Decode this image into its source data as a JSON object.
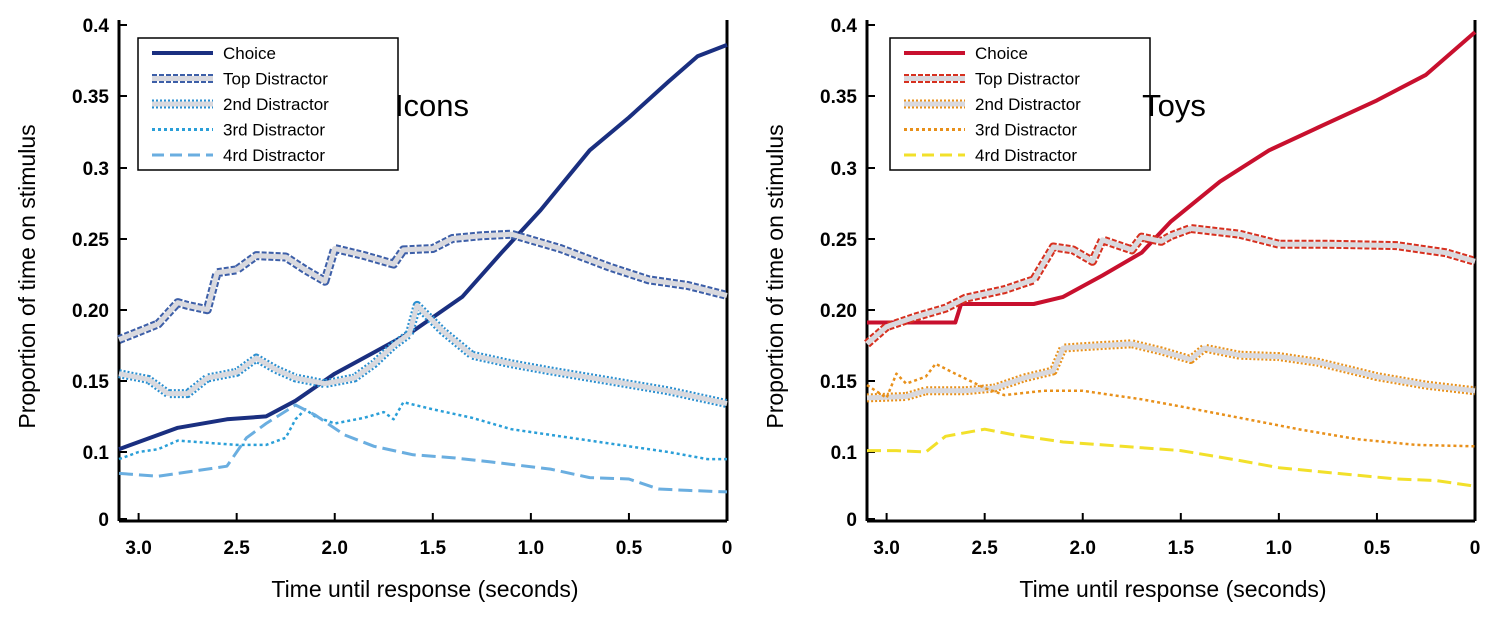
{
  "chart_data": [
    {
      "type": "line",
      "title": "Icons",
      "xlabel": "Time until response (seconds)",
      "ylabel": "Proportion of time on stimulus",
      "xlim": [
        3.1,
        0
      ],
      "ylim": [
        0.05,
        0.4
      ],
      "xticks": [
        "3.0",
        "2.5",
        "2.0",
        "1.5",
        "1.0",
        "0.5",
        "0"
      ],
      "yticks": [
        "0",
        "0.1",
        "0.15",
        "0.20",
        "0.25",
        "0.3",
        "0.35",
        "0.4"
      ],
      "legend": "top-left",
      "series": [
        {
          "name": "Choice",
          "color": "#1a2f80",
          "style": "solid",
          "points": [
            [
              3.1,
              0.102
            ],
            [
              2.8,
              0.117
            ],
            [
              2.55,
              0.123
            ],
            [
              2.35,
              0.125
            ],
            [
              2.2,
              0.136
            ],
            [
              2.0,
              0.155
            ],
            [
              1.8,
              0.17
            ],
            [
              1.6,
              0.185
            ],
            [
              1.35,
              0.209
            ],
            [
              1.15,
              0.24
            ],
            [
              0.95,
              0.27
            ],
            [
              0.7,
              0.312
            ],
            [
              0.5,
              0.335
            ],
            [
              0.3,
              0.36
            ],
            [
              0.15,
              0.378
            ],
            [
              0.0,
              0.386
            ]
          ]
        },
        {
          "name": "Top Distractor",
          "color": "#3d5fa8",
          "style": "double-dash",
          "points": [
            [
              3.1,
              0.179
            ],
            [
              2.9,
              0.19
            ],
            [
              2.8,
              0.205
            ],
            [
              2.75,
              0.203
            ],
            [
              2.65,
              0.2
            ],
            [
              2.6,
              0.226
            ],
            [
              2.5,
              0.228
            ],
            [
              2.4,
              0.238
            ],
            [
              2.25,
              0.237
            ],
            [
              2.15,
              0.228
            ],
            [
              2.05,
              0.22
            ],
            [
              2.0,
              0.243
            ],
            [
              1.85,
              0.238
            ],
            [
              1.7,
              0.232
            ],
            [
              1.65,
              0.242
            ],
            [
              1.5,
              0.243
            ],
            [
              1.4,
              0.25
            ],
            [
              1.25,
              0.252
            ],
            [
              1.1,
              0.253
            ],
            [
              0.85,
              0.243
            ],
            [
              0.6,
              0.23
            ],
            [
              0.4,
              0.221
            ],
            [
              0.2,
              0.217
            ],
            [
              0.0,
              0.21
            ]
          ]
        },
        {
          "name": "2nd Distractor",
          "color": "#2a8fd0",
          "style": "double-dot",
          "points": [
            [
              3.1,
              0.155
            ],
            [
              2.95,
              0.151
            ],
            [
              2.85,
              0.141
            ],
            [
              2.75,
              0.141
            ],
            [
              2.65,
              0.152
            ],
            [
              2.5,
              0.156
            ],
            [
              2.4,
              0.166
            ],
            [
              2.3,
              0.158
            ],
            [
              2.2,
              0.152
            ],
            [
              2.05,
              0.148
            ],
            [
              1.9,
              0.152
            ],
            [
              1.8,
              0.162
            ],
            [
              1.7,
              0.175
            ],
            [
              1.62,
              0.183
            ],
            [
              1.58,
              0.203
            ],
            [
              1.45,
              0.185
            ],
            [
              1.3,
              0.168
            ],
            [
              1.1,
              0.162
            ],
            [
              0.9,
              0.157
            ],
            [
              0.6,
              0.15
            ],
            [
              0.3,
              0.143
            ],
            [
              0.0,
              0.134
            ]
          ]
        },
        {
          "name": "3rd Distractor",
          "color": "#2a9fd8",
          "style": "dotted",
          "points": [
            [
              3.1,
              0.095
            ],
            [
              3.0,
              0.1
            ],
            [
              2.9,
              0.102
            ],
            [
              2.8,
              0.108
            ],
            [
              2.6,
              0.106
            ],
            [
              2.5,
              0.105
            ],
            [
              2.35,
              0.105
            ],
            [
              2.25,
              0.11
            ],
            [
              2.2,
              0.123
            ],
            [
              2.15,
              0.13
            ],
            [
              2.1,
              0.125
            ],
            [
              2.0,
              0.12
            ],
            [
              1.85,
              0.124
            ],
            [
              1.75,
              0.128
            ],
            [
              1.7,
              0.123
            ],
            [
              1.65,
              0.135
            ],
            [
              1.5,
              0.13
            ],
            [
              1.3,
              0.124
            ],
            [
              1.1,
              0.116
            ],
            [
              0.85,
              0.111
            ],
            [
              0.5,
              0.104
            ],
            [
              0.3,
              0.1
            ],
            [
              0.1,
              0.095
            ],
            [
              0.0,
              0.095
            ]
          ]
        },
        {
          "name": "4rd Distractor",
          "color": "#6aaee0",
          "style": "dashed",
          "points": [
            [
              3.1,
              0.085
            ],
            [
              2.9,
              0.083
            ],
            [
              2.7,
              0.087
            ],
            [
              2.55,
              0.09
            ],
            [
              2.45,
              0.11
            ],
            [
              2.35,
              0.12
            ],
            [
              2.2,
              0.133
            ],
            [
              2.1,
              0.126
            ],
            [
              1.95,
              0.112
            ],
            [
              1.8,
              0.104
            ],
            [
              1.6,
              0.098
            ],
            [
              1.4,
              0.096
            ],
            [
              1.2,
              0.093
            ],
            [
              0.9,
              0.088
            ],
            [
              0.7,
              0.082
            ],
            [
              0.5,
              0.081
            ],
            [
              0.35,
              0.074
            ],
            [
              0.2,
              0.073
            ],
            [
              0.0,
              0.072
            ]
          ]
        }
      ]
    },
    {
      "type": "line",
      "title": "Toys",
      "xlabel": "Time until response (seconds)",
      "ylabel": "Proportion of time on stimulus",
      "xlim": [
        3.1,
        0
      ],
      "ylim": [
        0.05,
        0.4
      ],
      "xticks": [
        "3.0",
        "2.5",
        "2.0",
        "1.5",
        "1.0",
        "0.5",
        "0"
      ],
      "yticks": [
        "0",
        "0.1",
        "0.15",
        "0.20",
        "0.25",
        "0.3",
        "0.35",
        "0.4"
      ],
      "legend": "top-left",
      "series": [
        {
          "name": "Choice",
          "color": "#c8102e",
          "style": "solid",
          "points": [
            [
              3.1,
              0.191
            ],
            [
              2.65,
              0.191
            ],
            [
              2.62,
              0.204
            ],
            [
              2.25,
              0.204
            ],
            [
              2.1,
              0.209
            ],
            [
              1.9,
              0.224
            ],
            [
              1.7,
              0.24
            ],
            [
              1.55,
              0.262
            ],
            [
              1.3,
              0.29
            ],
            [
              1.05,
              0.312
            ],
            [
              0.8,
              0.328
            ],
            [
              0.5,
              0.347
            ],
            [
              0.25,
              0.365
            ],
            [
              0.0,
              0.395
            ]
          ]
        },
        {
          "name": "Top Distractor",
          "color": "#d7301f",
          "style": "double-dash",
          "points": [
            [
              3.1,
              0.176
            ],
            [
              3.0,
              0.188
            ],
            [
              2.85,
              0.195
            ],
            [
              2.7,
              0.201
            ],
            [
              2.6,
              0.208
            ],
            [
              2.4,
              0.214
            ],
            [
              2.25,
              0.221
            ],
            [
              2.15,
              0.244
            ],
            [
              2.05,
              0.242
            ],
            [
              1.95,
              0.234
            ],
            [
              1.9,
              0.249
            ],
            [
              1.75,
              0.242
            ],
            [
              1.7,
              0.251
            ],
            [
              1.6,
              0.248
            ],
            [
              1.55,
              0.252
            ],
            [
              1.45,
              0.257
            ],
            [
              1.2,
              0.253
            ],
            [
              1.0,
              0.246
            ],
            [
              0.75,
              0.246
            ],
            [
              0.4,
              0.245
            ],
            [
              0.15,
              0.24
            ],
            [
              0.0,
              0.234
            ]
          ]
        },
        {
          "name": "2nd Distractor",
          "color": "#e8901a",
          "style": "double-dot",
          "points": [
            [
              3.1,
              0.138
            ],
            [
              2.9,
              0.139
            ],
            [
              2.8,
              0.143
            ],
            [
              2.6,
              0.143
            ],
            [
              2.45,
              0.145
            ],
            [
              2.3,
              0.152
            ],
            [
              2.15,
              0.157
            ],
            [
              2.1,
              0.173
            ],
            [
              2.0,
              0.174
            ],
            [
              1.75,
              0.176
            ],
            [
              1.6,
              0.171
            ],
            [
              1.45,
              0.165
            ],
            [
              1.38,
              0.173
            ],
            [
              1.2,
              0.168
            ],
            [
              1.0,
              0.167
            ],
            [
              0.8,
              0.163
            ],
            [
              0.5,
              0.153
            ],
            [
              0.25,
              0.147
            ],
            [
              0.0,
              0.143
            ]
          ]
        },
        {
          "name": "3rd Distractor",
          "color": "#e8901a",
          "style": "dotted",
          "points": [
            [
              3.1,
              0.147
            ],
            [
              3.0,
              0.138
            ],
            [
              2.95,
              0.155
            ],
            [
              2.9,
              0.148
            ],
            [
              2.8,
              0.153
            ],
            [
              2.75,
              0.162
            ],
            [
              2.65,
              0.155
            ],
            [
              2.5,
              0.145
            ],
            [
              2.4,
              0.14
            ],
            [
              2.2,
              0.143
            ],
            [
              2.0,
              0.143
            ],
            [
              1.7,
              0.137
            ],
            [
              1.5,
              0.132
            ],
            [
              1.2,
              0.124
            ],
            [
              0.9,
              0.116
            ],
            [
              0.6,
              0.109
            ],
            [
              0.3,
              0.105
            ],
            [
              0.0,
              0.104
            ]
          ]
        },
        {
          "name": "4rd Distractor",
          "color": "#f2e02a",
          "style": "dashed",
          "points": [
            [
              3.1,
              0.101
            ],
            [
              2.95,
              0.101
            ],
            [
              2.8,
              0.1
            ],
            [
              2.7,
              0.111
            ],
            [
              2.5,
              0.116
            ],
            [
              2.35,
              0.112
            ],
            [
              2.1,
              0.107
            ],
            [
              1.8,
              0.104
            ],
            [
              1.5,
              0.101
            ],
            [
              1.2,
              0.094
            ],
            [
              1.0,
              0.089
            ],
            [
              0.7,
              0.085
            ],
            [
              0.4,
              0.081
            ],
            [
              0.2,
              0.08
            ],
            [
              0.0,
              0.076
            ]
          ]
        }
      ]
    }
  ]
}
